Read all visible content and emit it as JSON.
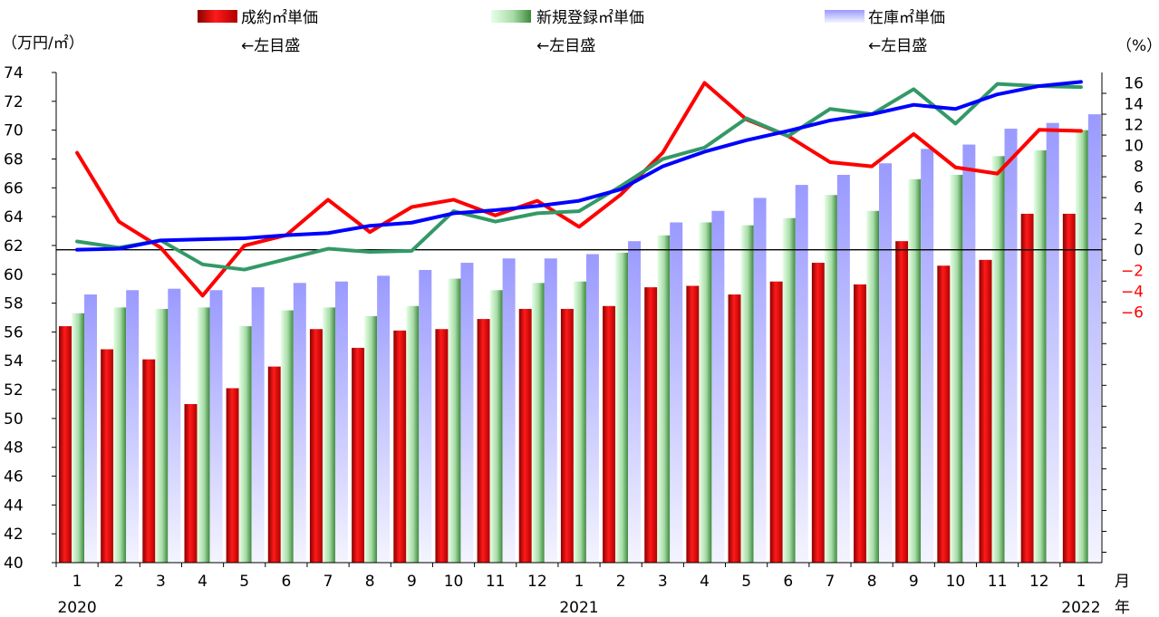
{
  "chart_data": {
    "type": "bar+line",
    "left_axis": {
      "unit_label": "（万円/㎡）",
      "min": 40,
      "max": 74,
      "step": 2,
      "ticks": [
        "40",
        "42",
        "44",
        "46",
        "48",
        "50",
        "52",
        "54",
        "56",
        "58",
        "60",
        "62",
        "64",
        "66",
        "68",
        "70",
        "72",
        "74"
      ]
    },
    "right_axis": {
      "unit_label": "（%）",
      "min": -30,
      "max": 17,
      "zero_ref": 0,
      "labeled_ticks": [
        16,
        14,
        12,
        10,
        8,
        6,
        4,
        2,
        0,
        -2,
        -4,
        -6
      ],
      "labels": [
        "16",
        "14",
        "12",
        "10",
        "8",
        "6",
        "4",
        "2",
        "0",
        "−2",
        "−4",
        "−6"
      ]
    },
    "x_axis": {
      "months": [
        "1",
        "2",
        "3",
        "4",
        "5",
        "6",
        "7",
        "8",
        "9",
        "10",
        "11",
        "12",
        "1",
        "2",
        "3",
        "4",
        "5",
        "6",
        "7",
        "8",
        "9",
        "10",
        "11",
        "12",
        "1"
      ],
      "month_unit": "月",
      "year_unit": "年",
      "years": [
        {
          "label": "2020",
          "index": 0
        },
        {
          "label": "2021",
          "index": 12
        },
        {
          "label": "2022",
          "index": 24
        }
      ]
    },
    "series": [
      {
        "name": "成約㎡単価",
        "axis_note": "←左目盛",
        "kind": "bar",
        "color": "#e00000",
        "values": [
          56.4,
          54.8,
          54.1,
          51.0,
          52.1,
          53.6,
          56.2,
          54.9,
          56.1,
          56.2,
          56.9,
          57.6,
          57.6,
          57.8,
          59.1,
          59.2,
          58.6,
          59.5,
          60.8,
          59.3,
          62.3,
          60.6,
          61.0,
          64.2,
          64.2
        ]
      },
      {
        "name": "新規登録㎡単価",
        "axis_note": "←左目盛",
        "kind": "bar",
        "color": "#66aa66",
        "values": [
          57.3,
          57.7,
          57.6,
          57.7,
          56.4,
          57.5,
          57.7,
          57.1,
          57.8,
          59.7,
          58.9,
          59.4,
          59.5,
          61.5,
          62.7,
          63.6,
          63.4,
          63.9,
          65.5,
          64.4,
          66.6,
          66.9,
          68.2,
          68.6,
          70.0
        ]
      },
      {
        "name": "在庫㎡単価",
        "axis_note": "←左目盛",
        "kind": "bar",
        "color": "#9999ff",
        "values": [
          58.6,
          58.9,
          59.0,
          58.9,
          59.1,
          59.4,
          59.5,
          59.9,
          60.3,
          60.8,
          61.1,
          61.1,
          61.4,
          62.3,
          63.6,
          64.4,
          65.3,
          66.2,
          66.9,
          67.7,
          68.7,
          69.0,
          70.1,
          70.5,
          71.1
        ]
      },
      {
        "kind": "line",
        "axis": "right",
        "color": "#ff0000",
        "values": [
          9.3,
          2.7,
          0.2,
          -4.4,
          0.4,
          1.4,
          4.8,
          1.7,
          4.1,
          4.8,
          3.3,
          4.7,
          2.2,
          5.3,
          9.3,
          16.0,
          12.5,
          10.9,
          8.4,
          8.0,
          11.1,
          7.9,
          7.3,
          11.5,
          11.4
        ]
      },
      {
        "kind": "line",
        "axis": "right",
        "color": "#339966",
        "values": [
          0.8,
          0.2,
          0.9,
          -1.4,
          -1.9,
          -0.9,
          0.1,
          -0.2,
          -0.1,
          3.7,
          2.7,
          3.5,
          3.7,
          6.1,
          8.7,
          9.8,
          12.6,
          10.9,
          13.5,
          13.0,
          15.4,
          12.1,
          15.9,
          15.7,
          15.6
        ]
      },
      {
        "kind": "line",
        "axis": "right",
        "color": "#0000ff",
        "values": [
          0.0,
          0.1,
          0.9,
          1.0,
          1.1,
          1.4,
          1.6,
          2.3,
          2.6,
          3.5,
          3.8,
          4.2,
          4.7,
          5.8,
          8.0,
          9.4,
          10.5,
          11.4,
          12.4,
          13.0,
          13.9,
          13.5,
          14.9,
          15.7,
          16.1
        ]
      }
    ]
  }
}
